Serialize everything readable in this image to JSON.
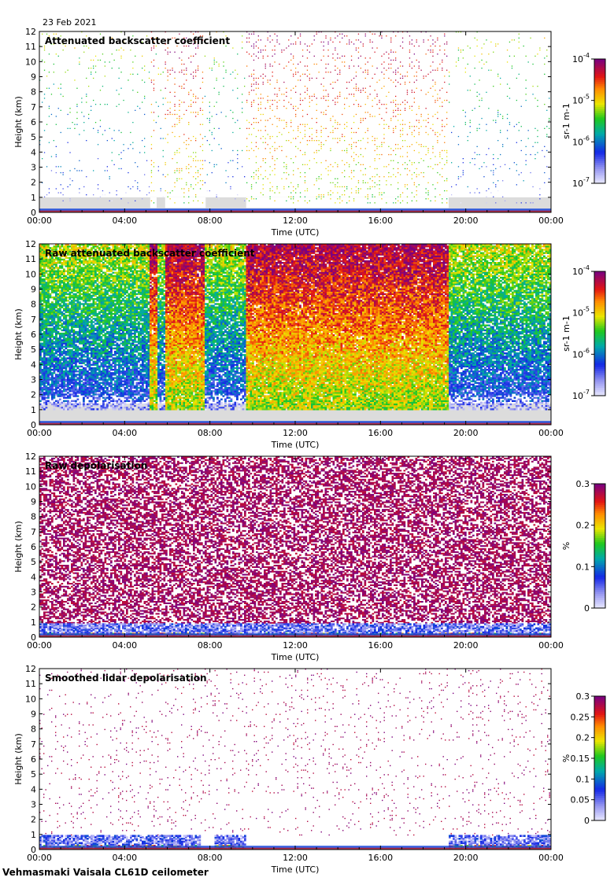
{
  "figure": {
    "date": "23 Feb 2021",
    "footer": "Vehmasmaki Vaisala CL61D ceilometer"
  },
  "chart_data": [
    {
      "type": "heatmap",
      "title": "Attenuated backscatter coefficient",
      "xlabel": "Time (UTC)",
      "ylabel": "Height (km)",
      "x_ticks": [
        "00:00",
        "04:00",
        "08:00",
        "12:00",
        "16:00",
        "20:00",
        "00:00"
      ],
      "y_ticks": [
        "0",
        "1",
        "2",
        "3",
        "4",
        "5",
        "6",
        "7",
        "8",
        "9",
        "10",
        "11",
        "12"
      ],
      "xlim_hours": [
        0,
        24
      ],
      "ylim_km": [
        0,
        12
      ],
      "colorbar": {
        "scale": "log",
        "range": [
          1e-07,
          0.0001
        ],
        "ticks": [
          "10^-7",
          "10^-6",
          "10^-5",
          "10^-4"
        ],
        "label": "sr-1 m-1"
      },
      "strong_signal_periods_utc_hours": [
        [
          5.2,
          5.5
        ],
        [
          5.9,
          7.8
        ],
        [
          9.7,
          19.2
        ]
      ]
    },
    {
      "type": "heatmap",
      "title": "Raw attenuated backscatter coefficient",
      "xlabel": "Time (UTC)",
      "ylabel": "Height (km)",
      "x_ticks": [
        "00:00",
        "04:00",
        "08:00",
        "12:00",
        "16:00",
        "20:00",
        "00:00"
      ],
      "y_ticks": [
        "0",
        "1",
        "2",
        "3",
        "4",
        "5",
        "6",
        "7",
        "8",
        "9",
        "10",
        "11",
        "12"
      ],
      "xlim_hours": [
        0,
        24
      ],
      "ylim_km": [
        0,
        12
      ],
      "colorbar": {
        "scale": "log",
        "range": [
          1e-07,
          0.0001
        ],
        "ticks": [
          "10^-7",
          "10^-6",
          "10^-5",
          "10^-4"
        ],
        "label": "sr-1 m-1"
      },
      "strong_signal_periods_utc_hours": [
        [
          5.2,
          5.5
        ],
        [
          5.9,
          7.8
        ],
        [
          9.7,
          19.2
        ]
      ]
    },
    {
      "type": "heatmap",
      "title": "Raw depolarisation",
      "xlabel": "Time (UTC)",
      "ylabel": "Height (km)",
      "x_ticks": [
        "00:00",
        "04:00",
        "08:00",
        "12:00",
        "16:00",
        "20:00",
        "00:00"
      ],
      "y_ticks": [
        "0",
        "1",
        "2",
        "3",
        "4",
        "5",
        "6",
        "7",
        "8",
        "9",
        "10",
        "11",
        "12"
      ],
      "xlim_hours": [
        0,
        24
      ],
      "ylim_km": [
        0,
        12
      ],
      "colorbar": {
        "scale": "linear",
        "range": [
          0,
          0.3
        ],
        "ticks": [
          "0",
          "0.1",
          "0.2",
          "0.3"
        ],
        "label": "%"
      }
    },
    {
      "type": "heatmap",
      "title": "Smoothed lidar depolarisation",
      "xlabel": "Time (UTC)",
      "ylabel": "Height (km)",
      "x_ticks": [
        "00:00",
        "04:00",
        "08:00",
        "12:00",
        "16:00",
        "20:00",
        "00:00"
      ],
      "y_ticks": [
        "0",
        "1",
        "2",
        "3",
        "4",
        "5",
        "6",
        "7",
        "8",
        "9",
        "10",
        "11",
        "12"
      ],
      "xlim_hours": [
        0,
        24
      ],
      "ylim_km": [
        0,
        12
      ],
      "colorbar": {
        "scale": "linear",
        "range": [
          0,
          0.3
        ],
        "ticks": [
          "0",
          "0.05",
          "0.1",
          "0.15",
          "0.2",
          "0.25",
          "0.3"
        ],
        "label": "%"
      }
    }
  ]
}
